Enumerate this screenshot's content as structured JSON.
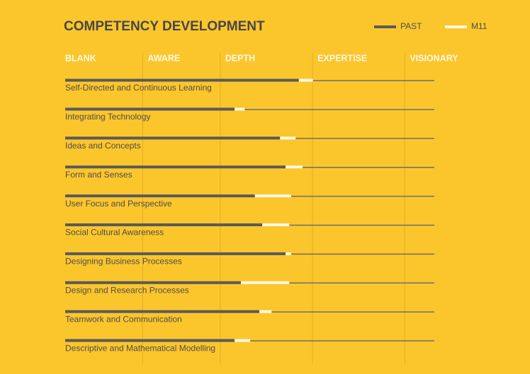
{
  "chart_data": {
    "type": "stacked-hbar",
    "title": "COMPETENCY DEVELOPMENT",
    "categories": [
      "Self-Directed and Continuous Learning",
      "Integrating Technology",
      "Ideas and Concepts",
      "Form and Senses",
      "User Focus and Perspective",
      "Social Cultural Awareness",
      "Designing Business Processes",
      "Design and Research Processes",
      "Teamwork and Communication",
      "Descriptive and Mathematical Modelling"
    ],
    "series": [
      {
        "name": "PAST",
        "color": "#5a5a5a",
        "values": [
          63.3,
          45.9,
          58.2,
          59.7,
          51.4,
          53.4,
          59.7,
          47.6,
          52.6,
          45.9
        ]
      },
      {
        "name": "M11",
        "color": "#fff9e3",
        "values": [
          3.8,
          2.7,
          4.2,
          4.6,
          9.8,
          7.3,
          1.5,
          13.1,
          3.3,
          4.2
        ]
      }
    ],
    "xlim": [
      0,
      100
    ],
    "xticks": [
      {
        "value": 0,
        "label": "BLANK"
      },
      {
        "value": 21,
        "label": "AWARE"
      },
      {
        "value": 42,
        "label": "DEPTH"
      },
      {
        "value": 67,
        "label": "EXPERTISE"
      },
      {
        "value": 92,
        "label": "VISIONARY"
      }
    ],
    "grid": true,
    "legend": "top-right"
  }
}
